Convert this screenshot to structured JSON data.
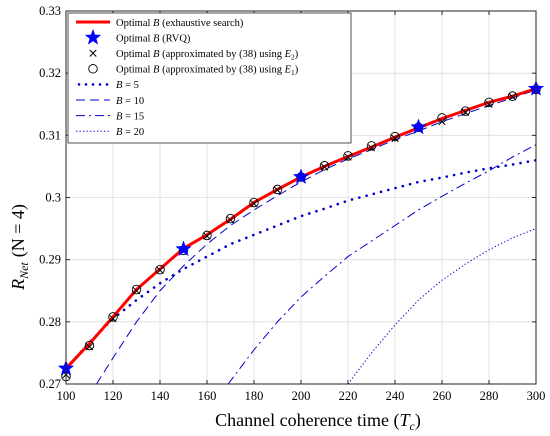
{
  "chart_data": {
    "type": "line",
    "xlabel": "Channel coherence time (T_c)",
    "xlabel_main": "Channel coherence time (",
    "xlabel_var": "T",
    "xlabel_sub": "c",
    "xlabel_close": ")",
    "ylabel": "R_Net (N = 4)",
    "ylabel_var": "R",
    "ylabel_sub": "Net",
    "ylabel_rest": "(N = 4)",
    "xlim": [
      100,
      300
    ],
    "ylim": [
      0.27,
      0.33
    ],
    "xticks": [
      100,
      120,
      140,
      160,
      180,
      200,
      220,
      240,
      260,
      280,
      300
    ],
    "yticks": [
      0.27,
      0.28,
      0.29,
      0.3,
      0.31,
      0.32,
      0.33
    ],
    "ytick_labels": [
      "0.27",
      "0.28",
      "0.29",
      "0.3",
      "0.31",
      "0.32",
      "0.33"
    ],
    "grid": true,
    "legend_position": "top-left",
    "series": [
      {
        "key": "exhaustive",
        "name": "Optimal B (exhaustive search)",
        "legend_prefix": "Optimal ",
        "legend_var": "B",
        "legend_suffix": " (exhaustive search)",
        "color": "#ff0000",
        "style": "solid-thick",
        "x": [
          100,
          110,
          120,
          130,
          140,
          150,
          160,
          170,
          180,
          190,
          200,
          210,
          220,
          230,
          240,
          250,
          260,
          270,
          280,
          290,
          300
        ],
        "y": [
          0.2725,
          0.2765,
          0.2808,
          0.2852,
          0.2885,
          0.2918,
          0.294,
          0.2965,
          0.2992,
          0.3013,
          0.3033,
          0.305,
          0.3066,
          0.3081,
          0.3097,
          0.3112,
          0.3127,
          0.314,
          0.3153,
          0.3163,
          0.3175
        ]
      },
      {
        "key": "rvq",
        "name": "Optimal B (RVQ)",
        "legend_prefix": "Optimal ",
        "legend_var": "B",
        "legend_suffix": " (RVQ)",
        "color": "#0000ff",
        "style": "star",
        "x": [
          100,
          150,
          200,
          250,
          300
        ],
        "y": [
          0.2725,
          0.2917,
          0.3033,
          0.3113,
          0.3175
        ]
      },
      {
        "key": "approx_e2",
        "name": "Optimal B (approximated by (38) using E2)",
        "legend_prefix": "Optimal ",
        "legend_var": "B",
        "legend_suffix": " (approximated by (38) using ",
        "legend_evar": "E",
        "legend_esub": "2",
        "legend_close": ")",
        "color": "#000000",
        "style": "cross",
        "x": [
          100,
          110,
          120,
          130,
          140,
          150,
          160,
          170,
          180,
          190,
          200,
          210,
          220,
          230,
          240,
          250,
          260,
          270,
          280,
          290,
          300
        ],
        "y": [
          0.2715,
          0.276,
          0.2805,
          0.285,
          0.2883,
          0.2916,
          0.2938,
          0.2964,
          0.299,
          0.3012,
          0.3032,
          0.3049,
          0.3065,
          0.308,
          0.3095,
          0.311,
          0.3122,
          0.3137,
          0.315,
          0.3162,
          0.3173
        ]
      },
      {
        "key": "approx_e1",
        "name": "Optimal B (approximated by (38) using E1)",
        "legend_prefix": "Optimal ",
        "legend_var": "B",
        "legend_suffix": " (approximated by (38) using ",
        "legend_evar": "E",
        "legend_esub": "1",
        "legend_close": ")",
        "color": "#000000",
        "style": "circle",
        "x": [
          100,
          110,
          120,
          130,
          140,
          150,
          160,
          170,
          180,
          190,
          200,
          210,
          220,
          230,
          240,
          250,
          260,
          270,
          280,
          290,
          300
        ],
        "y": [
          0.2712,
          0.2762,
          0.2808,
          0.2852,
          0.2884,
          0.2915,
          0.2939,
          0.2966,
          0.2992,
          0.3013,
          0.3033,
          0.3051,
          0.3067,
          0.3083,
          0.3098,
          0.3113,
          0.3128,
          0.3139,
          0.3153,
          0.3163,
          0.3174
        ]
      },
      {
        "key": "b5",
        "name": "B = 5",
        "legend_var": "B",
        "legend_eq": " = 5",
        "color": "#0000cc",
        "style": "dots",
        "x": [
          100,
          110,
          120,
          130,
          140,
          150,
          160,
          170,
          180,
          190,
          200,
          210,
          220,
          230,
          240,
          250,
          260,
          270,
          280,
          290,
          300
        ],
        "y": [
          0.2725,
          0.2767,
          0.2805,
          0.2835,
          0.2862,
          0.2885,
          0.2905,
          0.2925,
          0.294,
          0.2955,
          0.297,
          0.2982,
          0.2995,
          0.3005,
          0.3015,
          0.3025,
          0.3032,
          0.304,
          0.3047,
          0.3053,
          0.306
        ]
      },
      {
        "key": "b10",
        "name": "B = 10",
        "legend_var": "B",
        "legend_eq": " = 10",
        "color": "#0000cc",
        "style": "dashed",
        "x": [
          113,
          120,
          130,
          140,
          150,
          160,
          170,
          180,
          190,
          200,
          210,
          220,
          230,
          240,
          250,
          260,
          270,
          280,
          290,
          300
        ],
        "y": [
          0.27,
          0.2742,
          0.28,
          0.285,
          0.289,
          0.2925,
          0.2955,
          0.298,
          0.3003,
          0.3025,
          0.3045,
          0.3062,
          0.3077,
          0.3093,
          0.3107,
          0.3122,
          0.3135,
          0.3148,
          0.316,
          0.3173
        ]
      },
      {
        "key": "b15",
        "name": "B = 15",
        "legend_var": "B",
        "legend_eq": " = 15",
        "color": "#0000cc",
        "style": "dashdot",
        "x": [
          169,
          180,
          190,
          200,
          210,
          220,
          230,
          240,
          250,
          260,
          270,
          280,
          290,
          300
        ],
        "y": [
          0.27,
          0.2755,
          0.28,
          0.284,
          0.2873,
          0.2905,
          0.293,
          0.2955,
          0.298,
          0.3002,
          0.3023,
          0.3043,
          0.3065,
          0.3085
        ]
      },
      {
        "key": "b20",
        "name": "B = 20",
        "legend_var": "B",
        "legend_eq": " = 20",
        "color": "#0000cc",
        "style": "dotted",
        "x": [
          220,
          230,
          240,
          250,
          260,
          270,
          280,
          290,
          300
        ],
        "y": [
          0.27,
          0.275,
          0.2795,
          0.2835,
          0.2867,
          0.2893,
          0.2916,
          0.2935,
          0.295
        ]
      }
    ]
  }
}
